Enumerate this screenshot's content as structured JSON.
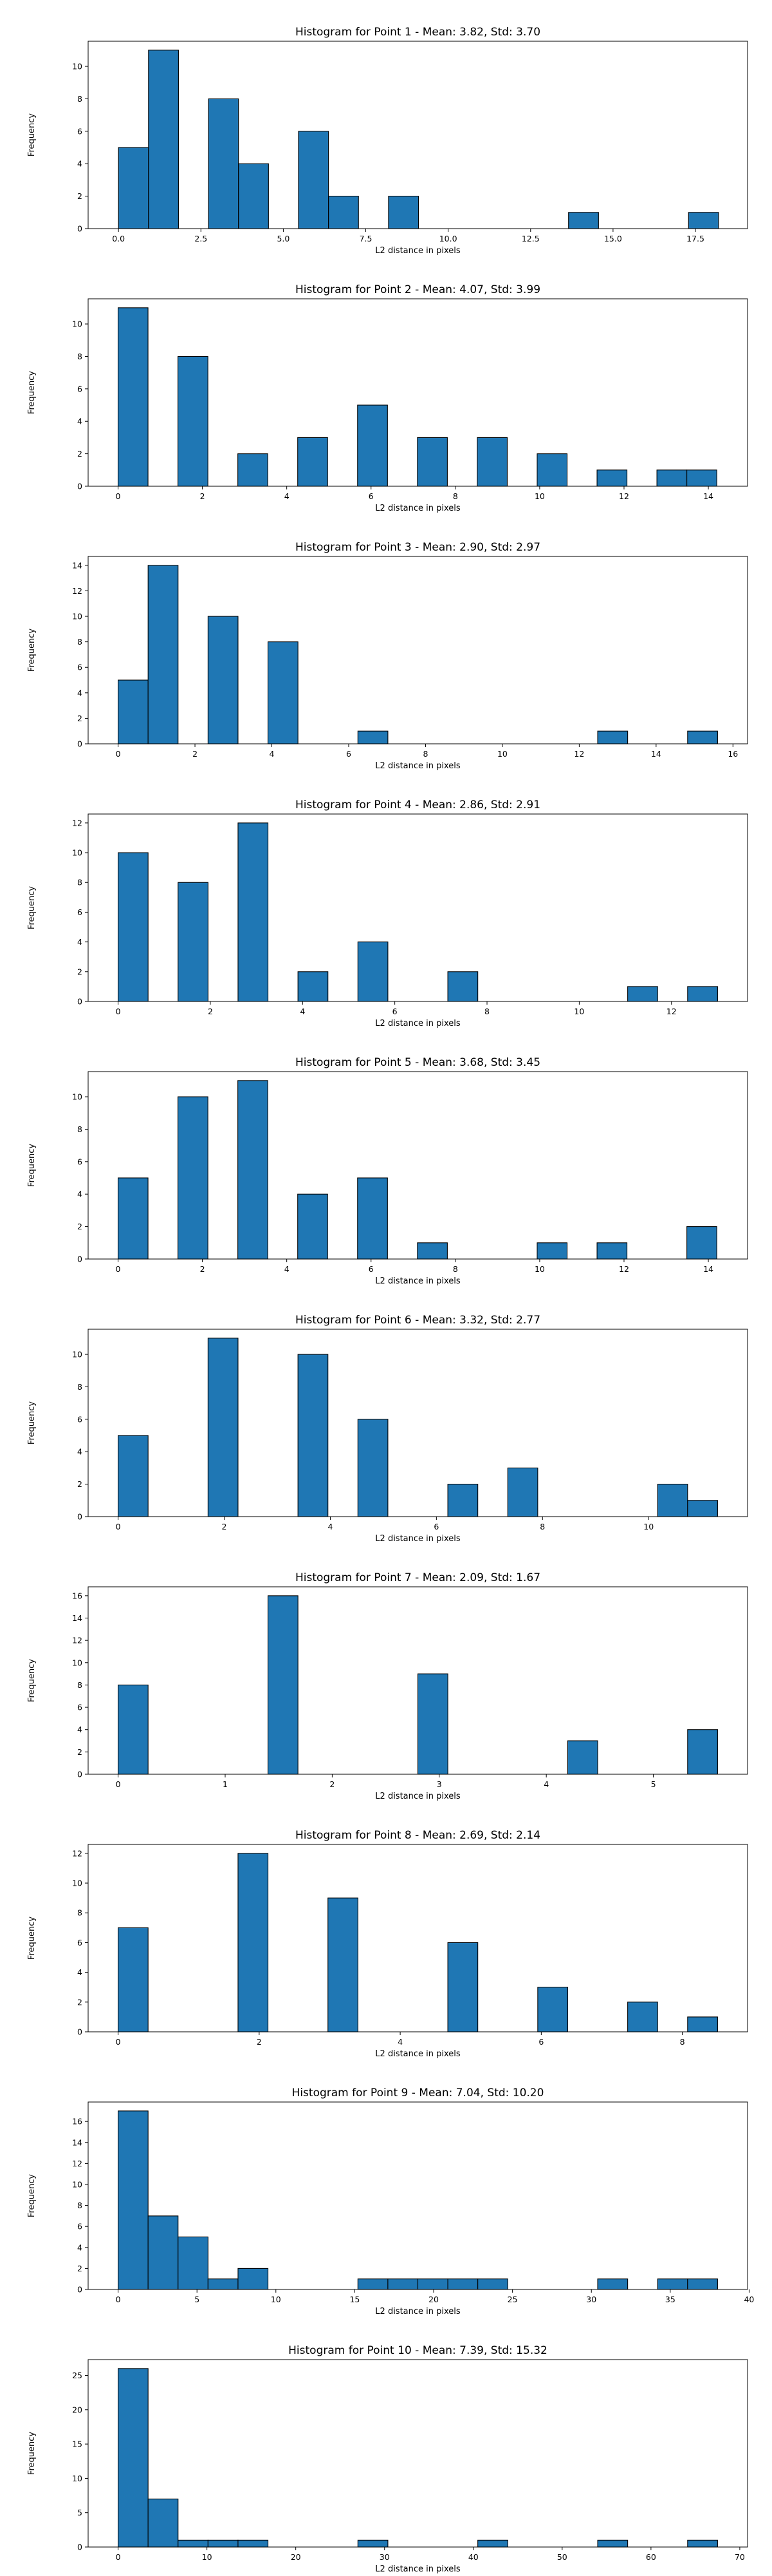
{
  "chart_data": [
    {
      "type": "bar",
      "title": "Histogram for Point 1 - Mean: 3.82, Std: 3.70",
      "xlabel": "L2 distance in pixels",
      "ylabel": "Frequency",
      "xlim": [
        -0.92,
        19.08
      ],
      "ylim": [
        0,
        11.55
      ],
      "xticks": [
        0.0,
        2.5,
        5.0,
        7.5,
        10.0,
        12.5,
        15.0,
        17.5
      ],
      "xtick_labels": [
        "0.0",
        "2.5",
        "5.0",
        "7.5",
        "10.0",
        "12.5",
        "15.0",
        "17.5"
      ],
      "yticks": [
        0,
        2,
        4,
        6,
        8,
        10
      ],
      "bins": {
        "start": 0,
        "width": 0.91
      },
      "values": [
        5,
        11,
        0,
        8,
        4,
        0,
        6,
        2,
        0,
        2,
        0,
        0,
        0,
        0,
        0,
        1,
        0,
        0,
        0,
        1
      ],
      "grid": false,
      "legend": "none"
    },
    {
      "type": "bar",
      "title": "Histogram for Point 2 - Mean: 4.07, Std: 3.99",
      "xlabel": "L2 distance in pixels",
      "ylabel": "Frequency",
      "xlim": [
        -0.71,
        14.93
      ],
      "ylim": [
        0,
        11.55
      ],
      "xticks": [
        0,
        2,
        4,
        6,
        8,
        10,
        12,
        14
      ],
      "xtick_labels": [
        "0",
        "2",
        "4",
        "6",
        "8",
        "10",
        "12",
        "14"
      ],
      "yticks": [
        0,
        2,
        4,
        6,
        8,
        10
      ],
      "bins": {
        "start": 0,
        "width": 0.71
      },
      "values": [
        11,
        0,
        8,
        0,
        2,
        0,
        3,
        0,
        5,
        0,
        3,
        0,
        3,
        0,
        2,
        0,
        1,
        0,
        1,
        1
      ],
      "grid": false,
      "legend": "none"
    },
    {
      "type": "bar",
      "title": "Histogram for Point 3 - Mean: 2.90, Std: 2.97",
      "xlabel": "L2 distance in pixels",
      "ylabel": "Frequency",
      "xlim": [
        -0.78,
        16.38
      ],
      "ylim": [
        0,
        14.7
      ],
      "xticks": [
        0,
        2,
        4,
        6,
        8,
        10,
        12,
        14,
        16
      ],
      "xtick_labels": [
        "0",
        "2",
        "4",
        "6",
        "8",
        "10",
        "12",
        "14",
        "16"
      ],
      "yticks": [
        0,
        2,
        4,
        6,
        8,
        10,
        12,
        14
      ],
      "bins": {
        "start": 0,
        "width": 0.78
      },
      "values": [
        5,
        14,
        0,
        10,
        0,
        8,
        0,
        0,
        1,
        0,
        0,
        0,
        0,
        0,
        0,
        0,
        1,
        0,
        0,
        1
      ],
      "grid": false,
      "legend": "none"
    },
    {
      "type": "bar",
      "title": "Histogram for Point 4 - Mean: 2.86, Std: 2.91",
      "xlabel": "L2 distance in pixels",
      "ylabel": "Frequency",
      "xlim": [
        -0.65,
        13.65
      ],
      "ylim": [
        0,
        12.6
      ],
      "xticks": [
        0,
        2,
        4,
        6,
        8,
        10,
        12
      ],
      "xtick_labels": [
        "0",
        "2",
        "4",
        "6",
        "8",
        "10",
        "12"
      ],
      "yticks": [
        0,
        2,
        4,
        6,
        8,
        10,
        12
      ],
      "bins": {
        "start": 0,
        "width": 0.65
      },
      "values": [
        10,
        0,
        8,
        0,
        12,
        0,
        2,
        0,
        4,
        0,
        0,
        2,
        0,
        0,
        0,
        0,
        0,
        1,
        0,
        1
      ],
      "grid": false,
      "legend": "none"
    },
    {
      "type": "bar",
      "title": "Histogram for Point 5 - Mean: 3.68, Std: 3.45",
      "xlabel": "L2 distance in pixels",
      "ylabel": "Frequency",
      "xlim": [
        -0.71,
        14.93
      ],
      "ylim": [
        0,
        11.55
      ],
      "xticks": [
        0,
        2,
        4,
        6,
        8,
        10,
        12,
        14
      ],
      "xtick_labels": [
        "0",
        "2",
        "4",
        "6",
        "8",
        "10",
        "12",
        "14"
      ],
      "yticks": [
        0,
        2,
        4,
        6,
        8,
        10
      ],
      "bins": {
        "start": 0,
        "width": 0.71
      },
      "values": [
        5,
        0,
        10,
        0,
        11,
        0,
        4,
        0,
        5,
        0,
        1,
        0,
        0,
        0,
        1,
        0,
        1,
        0,
        0,
        2
      ],
      "grid": false,
      "legend": "none"
    },
    {
      "type": "bar",
      "title": "Histogram for Point 6 - Mean: 3.32, Std: 2.77",
      "xlabel": "L2 distance in pixels",
      "ylabel": "Frequency",
      "xlim": [
        -0.565,
        11.865
      ],
      "ylim": [
        0,
        11.55
      ],
      "xticks": [
        0,
        2,
        4,
        6,
        8,
        10
      ],
      "xtick_labels": [
        "0",
        "2",
        "4",
        "6",
        "8",
        "10"
      ],
      "yticks": [
        0,
        2,
        4,
        6,
        8,
        10
      ],
      "bins": {
        "start": 0,
        "width": 0.565
      },
      "values": [
        5,
        0,
        0,
        11,
        0,
        0,
        10,
        0,
        6,
        0,
        0,
        2,
        0,
        3,
        0,
        0,
        0,
        0,
        2,
        1
      ],
      "grid": false,
      "legend": "none"
    },
    {
      "type": "bar",
      "title": "Histogram for Point 7 - Mean: 2.09, Std: 1.67",
      "xlabel": "L2 distance in pixels",
      "ylabel": "Frequency",
      "xlim": [
        -0.28,
        5.88
      ],
      "ylim": [
        0,
        16.8
      ],
      "xticks": [
        0,
        1,
        2,
        3,
        4,
        5
      ],
      "xtick_labels": [
        "0",
        "1",
        "2",
        "3",
        "4",
        "5"
      ],
      "yticks": [
        0,
        2,
        4,
        6,
        8,
        10,
        12,
        14,
        16
      ],
      "bins": {
        "start": 0,
        "width": 0.28
      },
      "values": [
        8,
        0,
        0,
        0,
        0,
        16,
        0,
        0,
        0,
        0,
        9,
        0,
        0,
        0,
        0,
        3,
        0,
        0,
        0,
        4
      ],
      "grid": false,
      "legend": "none"
    },
    {
      "type": "bar",
      "title": "Histogram for Point 8 - Mean: 2.69, Std: 2.14",
      "xlabel": "L2 distance in pixels",
      "ylabel": "Frequency",
      "xlim": [
        -0.425,
        8.925
      ],
      "ylim": [
        0,
        12.6
      ],
      "xticks": [
        0,
        2,
        4,
        6,
        8
      ],
      "xtick_labels": [
        "0",
        "2",
        "4",
        "6",
        "8"
      ],
      "yticks": [
        0,
        2,
        4,
        6,
        8,
        10,
        12
      ],
      "bins": {
        "start": 0,
        "width": 0.425
      },
      "values": [
        7,
        0,
        0,
        0,
        12,
        0,
        0,
        9,
        0,
        0,
        0,
        6,
        0,
        0,
        3,
        0,
        0,
        2,
        0,
        1
      ],
      "grid": false,
      "legend": "none"
    },
    {
      "type": "bar",
      "title": "Histogram for Point 9 - Mean: 7.04, Std: 10.20",
      "xlabel": "L2 distance in pixels",
      "ylabel": "Frequency",
      "xlim": [
        -1.9,
        39.9
      ],
      "ylim": [
        0,
        17.85
      ],
      "xticks": [
        0,
        5,
        10,
        15,
        20,
        25,
        30,
        35,
        40
      ],
      "xtick_labels": [
        "0",
        "5",
        "10",
        "15",
        "20",
        "25",
        "30",
        "35",
        "40"
      ],
      "yticks": [
        0,
        2,
        4,
        6,
        8,
        10,
        12,
        14,
        16
      ],
      "bins": {
        "start": 0,
        "width": 1.9
      },
      "values": [
        17,
        7,
        5,
        1,
        2,
        0,
        0,
        0,
        1,
        1,
        1,
        1,
        1,
        0,
        0,
        0,
        1,
        0,
        1,
        1
      ],
      "grid": false,
      "legend": "none"
    },
    {
      "type": "bar",
      "title": "Histogram for Point 10 - Mean: 7.39, Std: 15.32",
      "xlabel": "L2 distance in pixels",
      "ylabel": "Frequency",
      "xlim": [
        -3.375,
        70.875
      ],
      "ylim": [
        0,
        27.3
      ],
      "xticks": [
        0,
        10,
        20,
        30,
        40,
        50,
        60,
        70
      ],
      "xtick_labels": [
        "0",
        "10",
        "20",
        "30",
        "40",
        "50",
        "60",
        "70"
      ],
      "yticks": [
        0,
        5,
        10,
        15,
        20,
        25
      ],
      "bins": {
        "start": 0,
        "width": 3.375
      },
      "values": [
        26,
        7,
        1,
        1,
        1,
        0,
        0,
        0,
        1,
        0,
        0,
        0,
        1,
        0,
        0,
        0,
        1,
        0,
        0,
        1
      ],
      "grid": false,
      "legend": "none"
    }
  ]
}
